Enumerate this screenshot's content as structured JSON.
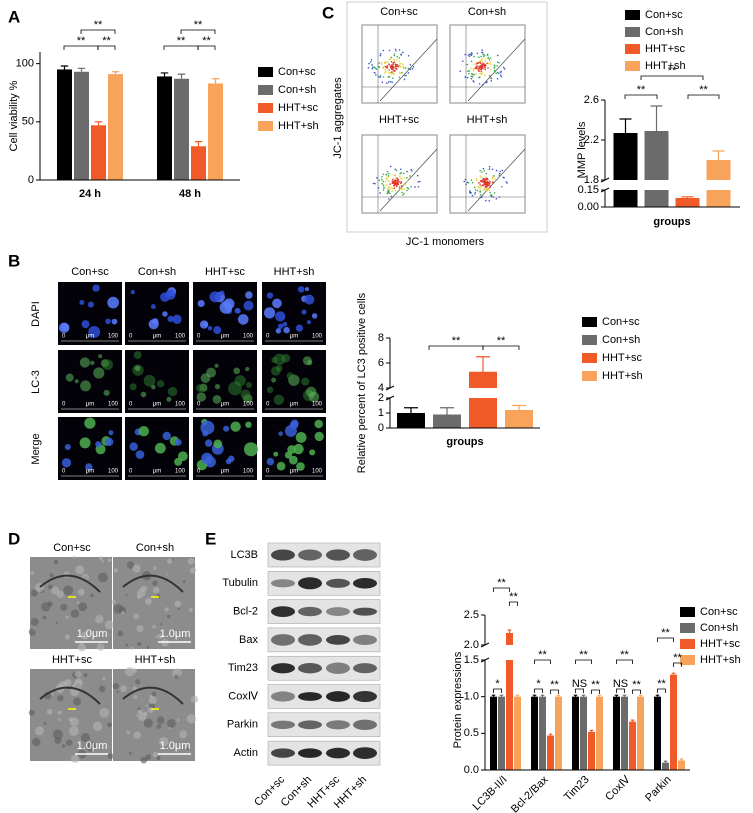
{
  "panel_labels": [
    "A",
    "B",
    "C",
    "D",
    "E"
  ],
  "flow_cytometry": {
    "groups": [
      "Con+sc",
      "Con+sh",
      "HHT+sc",
      "HHT+sh"
    ],
    "ylabel": "JC-1 aggregates",
    "xlabel": "JC-1 monomers"
  },
  "fluorescence": {
    "columns": [
      "Con+sc",
      "Con+sh",
      "HHT+sc",
      "HHT+sh"
    ],
    "rows": [
      "DAPI",
      "LC-3",
      "Merge"
    ],
    "scale_bar": [
      "0",
      "μm",
      "100"
    ]
  },
  "electron_microscopy": {
    "groups": [
      "Con+sc",
      "Con+sh",
      "HHT+sc",
      "HHT+sh"
    ],
    "scale_bar": "1.0μm"
  },
  "western_blot": {
    "proteins": [
      "LC3B",
      "Tubulin",
      "Bcl-2",
      "Bax",
      "Tim23",
      "CoxⅣ",
      "Parkin",
      "Actin"
    ],
    "lanes": [
      "Con+sc",
      "Con+sh",
      "HHT+sc",
      "HHT+sh"
    ]
  },
  "chart_data": [
    {
      "type": "bar",
      "ylabel": "Cell viability %",
      "categories": [
        "24 h",
        "48 h"
      ],
      "series": [
        {
          "name": "Con+sc",
          "color": "#000000",
          "values": [
            95,
            89
          ],
          "errors": [
            3,
            3
          ]
        },
        {
          "name": "Con+sh",
          "color": "#6b6b6b",
          "values": [
            93,
            87
          ],
          "errors": [
            3,
            4
          ]
        },
        {
          "name": "HHT+sc",
          "color": "#f05a28",
          "values": [
            47,
            29
          ],
          "errors": [
            3,
            4
          ]
        },
        {
          "name": "HHT+sh",
          "color": "#f7a35c",
          "values": [
            91,
            83
          ],
          "errors": [
            2,
            4
          ]
        }
      ],
      "ylim": [
        0,
        110
      ],
      "yticks": [
        0,
        50,
        100
      ],
      "annotations": [
        "**",
        "**",
        "**",
        "**",
        "**",
        "**"
      ]
    },
    {
      "type": "bar",
      "ylabel": "MMP levels",
      "xlabel": "groups",
      "series": [
        {
          "name": "Con+sc",
          "color": "#000000",
          "values": [
            2.27
          ],
          "errors": [
            0.14
          ]
        },
        {
          "name": "Con+sh",
          "color": "#6b6b6b",
          "values": [
            2.29
          ],
          "errors": [
            0.25
          ]
        },
        {
          "name": "HHT+sc",
          "color": "#f05a28",
          "values": [
            0.08
          ],
          "errors": [
            0.01
          ]
        },
        {
          "name": "HHT+sh",
          "color": "#f7a35c",
          "values": [
            2.0
          ],
          "errors": [
            0.09
          ]
        }
      ],
      "ylim": [
        0,
        2.6
      ],
      "ybreak": [
        0.15,
        1.8
      ],
      "yticks": [
        {
          "value": 0,
          "label": "0.00"
        },
        0.15,
        1.8,
        2.2,
        2.6
      ],
      "annotations": [
        "**",
        "**",
        "**"
      ]
    },
    {
      "type": "bar",
      "ylabel": "Relative percent of LC3 positive cells",
      "xlabel": "groups",
      "series": [
        {
          "name": "Con+sc",
          "color": "#000000",
          "values": [
            1.0
          ],
          "errors": [
            0.35
          ]
        },
        {
          "name": "Con+sh",
          "color": "#6b6b6b",
          "values": [
            0.9
          ],
          "errors": [
            0.45
          ]
        },
        {
          "name": "HHT+sc",
          "color": "#f05a28",
          "values": [
            5.3
          ],
          "errors": [
            1.2
          ]
        },
        {
          "name": "HHT+sh",
          "color": "#f7a35c",
          "values": [
            1.2
          ],
          "errors": [
            0.3
          ]
        }
      ],
      "ylim": [
        0,
        8
      ],
      "ybreak": [
        2,
        4
      ],
      "yticks": [
        0,
        1,
        2,
        4,
        6,
        8
      ],
      "annotations": [
        "**",
        "**"
      ]
    },
    {
      "type": "bar",
      "ylabel": "Protein expressions",
      "categories": [
        "LC3B-II/I",
        "Bcl-2/Bax",
        "Tim23",
        "CoxⅣ",
        "Parkin"
      ],
      "series": [
        {
          "name": "Con+sc",
          "color": "#000000",
          "values": [
            1,
            1,
            1,
            1,
            1
          ],
          "errors": [
            0.02,
            0.02,
            0.02,
            0.02,
            0.02
          ]
        },
        {
          "name": "Con+sh",
          "color": "#6b6b6b",
          "values": [
            1,
            1,
            1,
            1,
            0.1
          ],
          "errors": [
            0.02,
            0.02,
            0.02,
            0.02,
            0.02
          ]
        },
        {
          "name": "HHT+sc",
          "color": "#f05a28",
          "values": [
            2.2,
            0.47,
            0.52,
            0.66,
            1.3
          ],
          "errors": [
            0.05,
            0.02,
            0.02,
            0.02,
            0.02
          ]
        },
        {
          "name": "HHT+sh",
          "color": "#f7a35c",
          "values": [
            1,
            1,
            1,
            1,
            0.13
          ],
          "errors": [
            0.02,
            0.02,
            0.02,
            0.02,
            0.02
          ]
        }
      ],
      "ylim": [
        0,
        2.5
      ],
      "ybreak": [
        1.5,
        2.0
      ],
      "yticks": [
        {
          "value": 0,
          "label": "0.0"
        },
        0.5,
        {
          "value": 1,
          "label": "1.0"
        },
        1.5,
        {
          "value": 2,
          "label": "2.0"
        },
        2.5
      ],
      "annotations": [
        "*",
        "**",
        "**",
        "*",
        "**",
        "**",
        "NS",
        "**",
        "**",
        "NS",
        "**",
        "**",
        "**",
        "**",
        "**"
      ]
    }
  ]
}
